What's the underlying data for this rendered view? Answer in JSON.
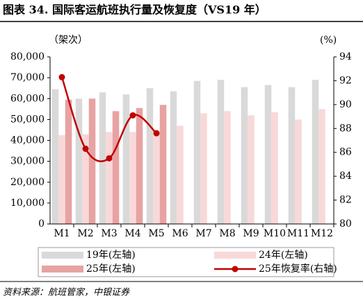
{
  "chart_data": {
    "type": "bar",
    "title": "图表 34. 国际客运航班执行量及恢复度（VS19 年）",
    "y_label": "（架次）",
    "y2_label": "(%)",
    "source": "资料来源：航班管家，中银证券",
    "categories": [
      "M1",
      "M2",
      "M3",
      "M4",
      "M5",
      "M6",
      "M7",
      "M8",
      "M9",
      "M10",
      "M11",
      "M12"
    ],
    "series": [
      {
        "name": "19年(左轴)",
        "color": "#d9d9d9",
        "values": [
          64500,
          60000,
          63000,
          62000,
          65000,
          63500,
          68500,
          69000,
          65500,
          66500,
          65500,
          69000
        ]
      },
      {
        "name": "24年(左轴)",
        "color": "#f8d8d8",
        "values": [
          42500,
          43000,
          44000,
          44000,
          44500,
          47000,
          53000,
          54000,
          52000,
          53500,
          50000,
          55000
        ]
      },
      {
        "name": "25年(左轴)",
        "color": "#e8a2a2",
        "values": [
          59500,
          60000,
          54000,
          55500,
          57000,
          null,
          null,
          null,
          null,
          null,
          null,
          null
        ]
      },
      {
        "name": "25年恢复率(右轴)",
        "color": "#c00000",
        "type": "line",
        "axis": "y2",
        "values": [
          92.3,
          86.3,
          85.5,
          89.1,
          87.6,
          null,
          null,
          null,
          null,
          null,
          null,
          null
        ]
      }
    ],
    "ylim": [
      0,
      80000
    ],
    "yticks": [
      0,
      {
        "value": 10000,
        "label": "10,000"
      },
      {
        "value": 20000,
        "label": "20,000"
      },
      {
        "value": 30000,
        "label": "30,000"
      },
      {
        "value": 40000,
        "label": "40,000"
      },
      {
        "value": 50000,
        "label": "50,000"
      },
      {
        "value": 60000,
        "label": "60,000"
      },
      {
        "value": 70000,
        "label": "70,000"
      },
      {
        "value": 80000,
        "label": "80,000"
      }
    ],
    "y2lim": [
      80,
      94
    ],
    "y2ticks": [
      80,
      82,
      84,
      86,
      88,
      90,
      92,
      94
    ]
  }
}
